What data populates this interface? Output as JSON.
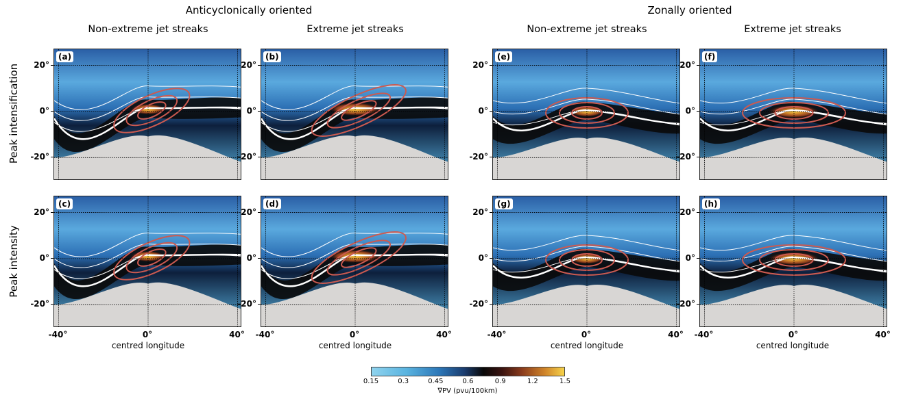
{
  "figure": {
    "group_titles": [
      "Anticyclonically oriented",
      "Zonally oriented"
    ],
    "column_titles": [
      "Non-extreme jet streaks",
      "Extreme jet streaks",
      "Non-extreme jet streaks",
      "Extreme jet streaks"
    ],
    "row_titles": [
      "Peak intensification",
      "Peak intensity"
    ],
    "x_axis_title": "centred longitude"
  },
  "chart_data": {
    "type": "heatmap",
    "panels": [
      {
        "label": "(a)",
        "orientation": "Anticyclonically oriented",
        "category": "Non-extreme jet streaks",
        "stage": "Peak intensification"
      },
      {
        "label": "(b)",
        "orientation": "Anticyclonically oriented",
        "category": "Extreme jet streaks",
        "stage": "Peak intensification"
      },
      {
        "label": "(e)",
        "orientation": "Zonally oriented",
        "category": "Non-extreme jet streaks",
        "stage": "Peak intensification"
      },
      {
        "label": "(f)",
        "orientation": "Zonally oriented",
        "category": "Extreme jet streaks",
        "stage": "Peak intensification"
      },
      {
        "label": "(c)",
        "orientation": "Anticyclonically oriented",
        "category": "Non-extreme jet streaks",
        "stage": "Peak intensity"
      },
      {
        "label": "(d)",
        "orientation": "Anticyclonically oriented",
        "category": "Extreme jet streaks",
        "stage": "Peak intensity"
      },
      {
        "label": "(g)",
        "orientation": "Zonally oriented",
        "category": "Non-extreme jet streaks",
        "stage": "Peak intensity"
      },
      {
        "label": "(h)",
        "orientation": "Zonally oriented",
        "category": "Extreme jet streaks",
        "stage": "Peak intensity"
      }
    ],
    "x_range": [
      -42,
      42
    ],
    "y_range": [
      -30,
      27
    ],
    "x_ticks": [
      -40,
      0,
      40
    ],
    "x_tick_labels": [
      "-40°",
      "0°",
      "40°"
    ],
    "y_ticks": [
      20,
      0,
      -20
    ],
    "y_tick_labels": [
      "20°",
      "0°",
      "-20°"
    ],
    "xlabel": "centred longitude",
    "colorbar": {
      "label": "∇PV (pvu/100km)",
      "ticks": [
        0.15,
        0.3,
        0.45,
        0.6,
        0.9,
        1.2,
        1.5
      ],
      "tick_labels": [
        "0.15",
        "0.3",
        "0.45",
        "0.6",
        "0.9",
        "1.2",
        "1.5"
      ],
      "colors": [
        "#8fd3ee",
        "#2c77b8",
        "#080808",
        "#8a3b1c",
        "#f6d24a"
      ]
    },
    "colors": {
      "land_grey": "#d8d6d4",
      "contour_white": "#ffffff",
      "contour_red": "#cc5a50",
      "grid": "#000000"
    }
  }
}
